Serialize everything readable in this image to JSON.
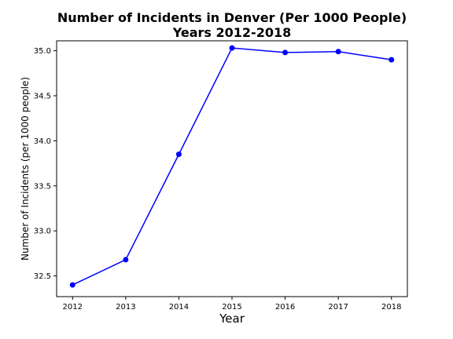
{
  "chart_data": {
    "type": "line",
    "title_line1": "Number of Incidents in Denver (Per 1000 People)",
    "title_line2": "Years 2012-2018",
    "xlabel": "Year",
    "ylabel": "Number of Incidents (per 1000 people)",
    "x": [
      2012,
      2013,
      2014,
      2015,
      2016,
      2017,
      2018
    ],
    "series": [
      {
        "values": [
          32.4,
          32.68,
          33.85,
          35.03,
          34.98,
          34.99,
          34.9
        ],
        "color": "#0000ff",
        "marker": "circle"
      }
    ],
    "xlim": [
      2011.7,
      2018.3
    ],
    "ylim": [
      32.27,
      35.11
    ],
    "xticks": [
      "2012",
      "2013",
      "2014",
      "2015",
      "2016",
      "2017",
      "2018"
    ],
    "yticks": [
      "32.5",
      "33.0",
      "33.5",
      "34.0",
      "34.5",
      "35.0"
    ],
    "grid": false,
    "legend": false
  }
}
